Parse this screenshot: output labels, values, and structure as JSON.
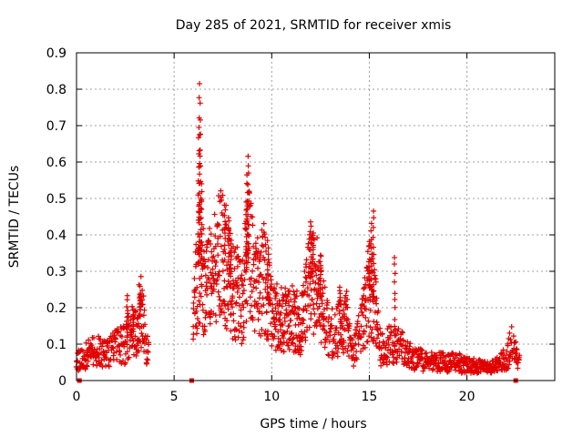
{
  "chart_data": {
    "type": "scatter",
    "title": "Day 285 of 2021, SRMTID for receiver xmis",
    "xlabel": "GPS time / hours",
    "ylabel": "SRMTID / TECUs",
    "xlim": [
      0,
      24.5
    ],
    "ylim": [
      0,
      0.9
    ],
    "grid": true,
    "marker": "+",
    "color": "#e00000",
    "xticks": [
      0,
      5,
      10,
      15,
      20
    ],
    "xtick_labels": [
      "0",
      "5",
      "10",
      "15",
      "20"
    ],
    "yticks": [
      0,
      0.1,
      0.2,
      0.3,
      0.4,
      0.5,
      0.6,
      0.7,
      0.8,
      0.9
    ],
    "ytick_labels": [
      "0",
      "0.1",
      "0.2",
      "0.3",
      "0.4",
      "0.5",
      "0.6",
      "0.7",
      "0.8",
      "0.9"
    ],
    "series": [
      {
        "name": "SRMTID",
        "profile": [
          [
            0.0,
            0.05
          ],
          [
            0.5,
            0.07
          ],
          [
            1.0,
            0.08
          ],
          [
            1.5,
            0.08
          ],
          [
            2.0,
            0.09
          ],
          [
            2.5,
            0.1
          ],
          [
            2.8,
            0.15
          ],
          [
            3.0,
            0.12
          ],
          [
            3.3,
            0.2
          ],
          [
            3.6,
            0.08
          ],
          [
            5.9,
            0.0
          ],
          [
            6.0,
            0.2
          ],
          [
            6.3,
            0.35
          ],
          [
            6.6,
            0.25
          ],
          [
            7.0,
            0.3
          ],
          [
            7.5,
            0.35
          ],
          [
            8.0,
            0.25
          ],
          [
            8.5,
            0.22
          ],
          [
            8.8,
            0.35
          ],
          [
            9.2,
            0.25
          ],
          [
            9.6,
            0.28
          ],
          [
            10.0,
            0.18
          ],
          [
            10.5,
            0.17
          ],
          [
            11.0,
            0.18
          ],
          [
            11.5,
            0.15
          ],
          [
            12.0,
            0.28
          ],
          [
            12.4,
            0.25
          ],
          [
            12.8,
            0.15
          ],
          [
            13.2,
            0.12
          ],
          [
            13.8,
            0.18
          ],
          [
            14.2,
            0.08
          ],
          [
            14.6,
            0.15
          ],
          [
            15.0,
            0.25
          ],
          [
            15.3,
            0.2
          ],
          [
            15.6,
            0.08
          ],
          [
            16.0,
            0.1
          ],
          [
            16.5,
            0.1
          ],
          [
            17.0,
            0.07
          ],
          [
            17.5,
            0.06
          ],
          [
            18.0,
            0.05
          ],
          [
            18.5,
            0.05
          ],
          [
            19.0,
            0.05
          ],
          [
            19.5,
            0.05
          ],
          [
            20.0,
            0.04
          ],
          [
            20.5,
            0.04
          ],
          [
            21.0,
            0.03
          ],
          [
            21.5,
            0.04
          ],
          [
            22.0,
            0.06
          ],
          [
            22.3,
            0.1
          ],
          [
            22.7,
            0.05
          ]
        ],
        "spikes": [
          [
            3.25,
            0.24
          ],
          [
            6.3,
            0.82
          ],
          [
            6.35,
            0.76
          ],
          [
            6.25,
            0.7
          ],
          [
            6.3,
            0.62
          ],
          [
            6.4,
            0.54
          ],
          [
            7.6,
            0.48
          ],
          [
            7.8,
            0.45
          ],
          [
            7.9,
            0.4
          ],
          [
            8.8,
            0.62
          ],
          [
            8.75,
            0.56
          ],
          [
            8.7,
            0.49
          ],
          [
            9.8,
            0.38
          ],
          [
            12.0,
            0.44
          ],
          [
            12.1,
            0.4
          ],
          [
            12.5,
            0.34
          ],
          [
            13.5,
            0.26
          ],
          [
            15.2,
            0.47
          ],
          [
            15.1,
            0.43
          ],
          [
            15.0,
            0.33
          ],
          [
            16.3,
            0.34
          ],
          [
            2.6,
            0.23
          ],
          [
            2.9,
            0.19
          ]
        ],
        "baseline_markers": [
          [
            0.15,
            0.0
          ],
          [
            5.9,
            0.0
          ],
          [
            22.5,
            0.0
          ]
        ]
      }
    ]
  }
}
